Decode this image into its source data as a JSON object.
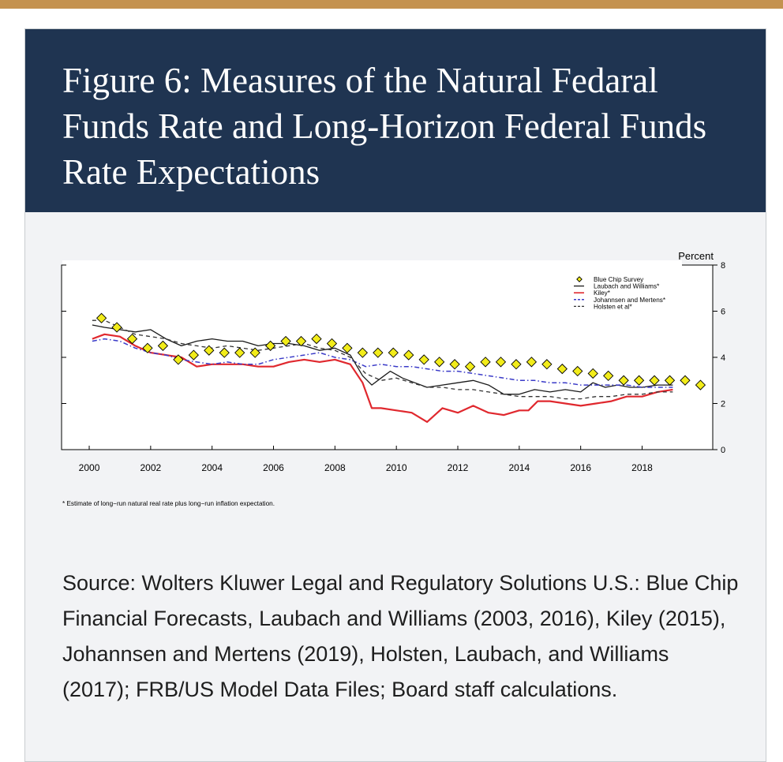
{
  "title": "Figure 6: Measures of the Natural Fedaral Funds Rate and Long-Horizon Federal Funds Rate Expectations",
  "source": "Source: Wolters Kluwer Legal and Regulatory Solutions U.S.: Blue Chip Financial Forecasts, Laubach and Williams (2003, 2016), Kiley (2015), Johannsen and Mertens (2019), Holsten, Laubach, and Williams (2017); FRB/US Model Data Files; Board staff calculations.",
  "colors": {
    "header_bg": "#1f3451",
    "top_stripe": "#c4924f",
    "kiley": "#e0282e",
    "johannsen": "#3b3bc8",
    "diamond_fill": "#f2ec1a"
  },
  "chart_data": {
    "type": "line",
    "ylabel": "Percent",
    "xlim": [
      1999.1,
      2020.3
    ],
    "ylim": [
      0,
      8
    ],
    "x_ticks": [
      "2000",
      "2002",
      "2004",
      "2006",
      "2008",
      "2010",
      "2012",
      "2014",
      "2016",
      "2018"
    ],
    "y_ticks": [
      "0",
      "2",
      "4",
      "6",
      "8"
    ],
    "footnote": "* Estimate of long−run natural real rate plus long−run inflation expectation.",
    "legend": [
      "Blue Chip Survey",
      "Laubach and Williams*",
      "Kiley*",
      "Johannsen and Mertens*",
      "Holsten et al*"
    ],
    "series": [
      {
        "name": "Blue Chip Survey",
        "style": "diamond",
        "points": [
          [
            2000.4,
            5.7
          ],
          [
            2000.9,
            5.3
          ],
          [
            2001.4,
            4.8
          ],
          [
            2001.9,
            4.4
          ],
          [
            2002.4,
            4.5
          ],
          [
            2002.9,
            3.9
          ],
          [
            2003.4,
            4.1
          ],
          [
            2003.9,
            4.3
          ],
          [
            2004.4,
            4.2
          ],
          [
            2004.9,
            4.2
          ],
          [
            2005.4,
            4.2
          ],
          [
            2005.9,
            4.5
          ],
          [
            2006.4,
            4.7
          ],
          [
            2006.9,
            4.7
          ],
          [
            2007.4,
            4.8
          ],
          [
            2007.9,
            4.6
          ],
          [
            2008.4,
            4.4
          ],
          [
            2008.9,
            4.2
          ],
          [
            2009.4,
            4.2
          ],
          [
            2009.9,
            4.2
          ],
          [
            2010.4,
            4.1
          ],
          [
            2010.9,
            3.9
          ],
          [
            2011.4,
            3.8
          ],
          [
            2011.9,
            3.7
          ],
          [
            2012.4,
            3.6
          ],
          [
            2012.9,
            3.8
          ],
          [
            2013.4,
            3.8
          ],
          [
            2013.9,
            3.7
          ],
          [
            2014.4,
            3.8
          ],
          [
            2014.9,
            3.7
          ],
          [
            2015.4,
            3.5
          ],
          [
            2015.9,
            3.4
          ],
          [
            2016.4,
            3.3
          ],
          [
            2016.9,
            3.2
          ],
          [
            2017.4,
            3.0
          ],
          [
            2017.9,
            3.0
          ],
          [
            2018.4,
            3.0
          ],
          [
            2018.9,
            3.0
          ],
          [
            2019.4,
            3.0
          ],
          [
            2019.9,
            2.8
          ]
        ]
      },
      {
        "name": "Laubach and Williams*",
        "style": "solid",
        "points": [
          [
            2000.1,
            5.4
          ],
          [
            2000.5,
            5.3
          ],
          [
            2001.0,
            5.2
          ],
          [
            2001.5,
            5.1
          ],
          [
            2002.0,
            5.2
          ],
          [
            2002.5,
            4.8
          ],
          [
            2003.0,
            4.5
          ],
          [
            2003.5,
            4.7
          ],
          [
            2004.0,
            4.8
          ],
          [
            2004.5,
            4.7
          ],
          [
            2005.0,
            4.7
          ],
          [
            2005.5,
            4.5
          ],
          [
            2006.0,
            4.6
          ],
          [
            2006.5,
            4.6
          ],
          [
            2007.0,
            4.5
          ],
          [
            2007.5,
            4.3
          ],
          [
            2008.0,
            4.4
          ],
          [
            2008.5,
            4.1
          ],
          [
            2008.9,
            3.2
          ],
          [
            2009.2,
            2.8
          ],
          [
            2009.5,
            3.1
          ],
          [
            2009.8,
            3.4
          ],
          [
            2010.2,
            3.1
          ],
          [
            2010.6,
            2.9
          ],
          [
            2011.0,
            2.7
          ],
          [
            2011.5,
            2.8
          ],
          [
            2012.0,
            2.9
          ],
          [
            2012.5,
            3.0
          ],
          [
            2013.0,
            2.8
          ],
          [
            2013.5,
            2.4
          ],
          [
            2014.0,
            2.4
          ],
          [
            2014.5,
            2.6
          ],
          [
            2015.0,
            2.5
          ],
          [
            2015.5,
            2.6
          ],
          [
            2016.0,
            2.5
          ],
          [
            2016.4,
            2.9
          ],
          [
            2016.8,
            2.7
          ],
          [
            2017.2,
            2.8
          ],
          [
            2017.6,
            2.7
          ],
          [
            2018.0,
            2.7
          ],
          [
            2018.5,
            2.8
          ],
          [
            2019.0,
            2.8
          ]
        ]
      },
      {
        "name": "Kiley*",
        "style": "solid",
        "points": [
          [
            2000.1,
            4.8
          ],
          [
            2000.5,
            5.0
          ],
          [
            2001.0,
            4.9
          ],
          [
            2001.5,
            4.5
          ],
          [
            2002.0,
            4.2
          ],
          [
            2002.5,
            4.1
          ],
          [
            2003.0,
            4.0
          ],
          [
            2003.5,
            3.6
          ],
          [
            2004.0,
            3.7
          ],
          [
            2004.5,
            3.7
          ],
          [
            2005.0,
            3.7
          ],
          [
            2005.5,
            3.6
          ],
          [
            2006.0,
            3.6
          ],
          [
            2006.5,
            3.8
          ],
          [
            2007.0,
            3.9
          ],
          [
            2007.5,
            3.8
          ],
          [
            2008.0,
            3.9
          ],
          [
            2008.5,
            3.7
          ],
          [
            2008.9,
            2.9
          ],
          [
            2009.2,
            1.8
          ],
          [
            2009.5,
            1.8
          ],
          [
            2010.0,
            1.7
          ],
          [
            2010.5,
            1.6
          ],
          [
            2011.0,
            1.2
          ],
          [
            2011.5,
            1.8
          ],
          [
            2012.0,
            1.6
          ],
          [
            2012.5,
            1.9
          ],
          [
            2013.0,
            1.6
          ],
          [
            2013.5,
            1.5
          ],
          [
            2014.0,
            1.7
          ],
          [
            2014.3,
            1.7
          ],
          [
            2014.6,
            2.1
          ],
          [
            2015.0,
            2.1
          ],
          [
            2015.5,
            2.0
          ],
          [
            2016.0,
            1.9
          ],
          [
            2016.5,
            2.0
          ],
          [
            2017.0,
            2.1
          ],
          [
            2017.5,
            2.3
          ],
          [
            2018.0,
            2.3
          ],
          [
            2018.5,
            2.5
          ],
          [
            2019.0,
            2.6
          ]
        ]
      },
      {
        "name": "Johannsen and Mertens*",
        "style": "dashdot",
        "points": [
          [
            2000.1,
            4.7
          ],
          [
            2000.5,
            4.8
          ],
          [
            2001.0,
            4.7
          ],
          [
            2001.5,
            4.4
          ],
          [
            2002.0,
            4.2
          ],
          [
            2002.5,
            4.1
          ],
          [
            2003.0,
            3.9
          ],
          [
            2003.5,
            3.8
          ],
          [
            2004.0,
            3.7
          ],
          [
            2004.5,
            3.8
          ],
          [
            2005.0,
            3.7
          ],
          [
            2005.5,
            3.7
          ],
          [
            2006.0,
            3.9
          ],
          [
            2006.5,
            4.0
          ],
          [
            2007.0,
            4.1
          ],
          [
            2007.5,
            4.2
          ],
          [
            2008.0,
            4.0
          ],
          [
            2008.5,
            3.9
          ],
          [
            2009.0,
            3.6
          ],
          [
            2009.5,
            3.7
          ],
          [
            2010.0,
            3.6
          ],
          [
            2010.5,
            3.6
          ],
          [
            2011.0,
            3.5
          ],
          [
            2011.5,
            3.4
          ],
          [
            2012.0,
            3.4
          ],
          [
            2012.5,
            3.3
          ],
          [
            2013.0,
            3.2
          ],
          [
            2013.5,
            3.1
          ],
          [
            2014.0,
            3.0
          ],
          [
            2014.5,
            3.0
          ],
          [
            2015.0,
            2.9
          ],
          [
            2015.5,
            2.9
          ],
          [
            2016.0,
            2.8
          ],
          [
            2016.5,
            2.8
          ],
          [
            2017.0,
            2.8
          ],
          [
            2017.5,
            2.8
          ],
          [
            2018.0,
            2.7
          ],
          [
            2018.5,
            2.7
          ],
          [
            2019.0,
            2.7
          ]
        ]
      },
      {
        "name": "Holsten et al*",
        "style": "dashed",
        "points": [
          [
            2000.1,
            5.6
          ],
          [
            2000.5,
            5.6
          ],
          [
            2001.0,
            5.3
          ],
          [
            2001.5,
            5.0
          ],
          [
            2002.0,
            4.9
          ],
          [
            2002.5,
            4.8
          ],
          [
            2003.0,
            4.6
          ],
          [
            2003.5,
            4.5
          ],
          [
            2004.0,
            4.4
          ],
          [
            2004.5,
            4.5
          ],
          [
            2005.0,
            4.4
          ],
          [
            2005.5,
            4.3
          ],
          [
            2006.0,
            4.4
          ],
          [
            2006.5,
            4.5
          ],
          [
            2007.0,
            4.6
          ],
          [
            2007.5,
            4.4
          ],
          [
            2008.0,
            4.3
          ],
          [
            2008.5,
            4.0
          ],
          [
            2009.0,
            3.3
          ],
          [
            2009.5,
            3.0
          ],
          [
            2010.0,
            3.1
          ],
          [
            2010.5,
            2.9
          ],
          [
            2011.0,
            2.7
          ],
          [
            2011.5,
            2.7
          ],
          [
            2012.0,
            2.6
          ],
          [
            2012.5,
            2.6
          ],
          [
            2013.0,
            2.5
          ],
          [
            2013.5,
            2.4
          ],
          [
            2014.0,
            2.3
          ],
          [
            2014.5,
            2.3
          ],
          [
            2015.0,
            2.3
          ],
          [
            2015.5,
            2.2
          ],
          [
            2016.0,
            2.2
          ],
          [
            2016.5,
            2.3
          ],
          [
            2017.0,
            2.3
          ],
          [
            2017.5,
            2.4
          ],
          [
            2018.0,
            2.4
          ],
          [
            2018.5,
            2.5
          ],
          [
            2019.0,
            2.5
          ]
        ]
      }
    ]
  }
}
